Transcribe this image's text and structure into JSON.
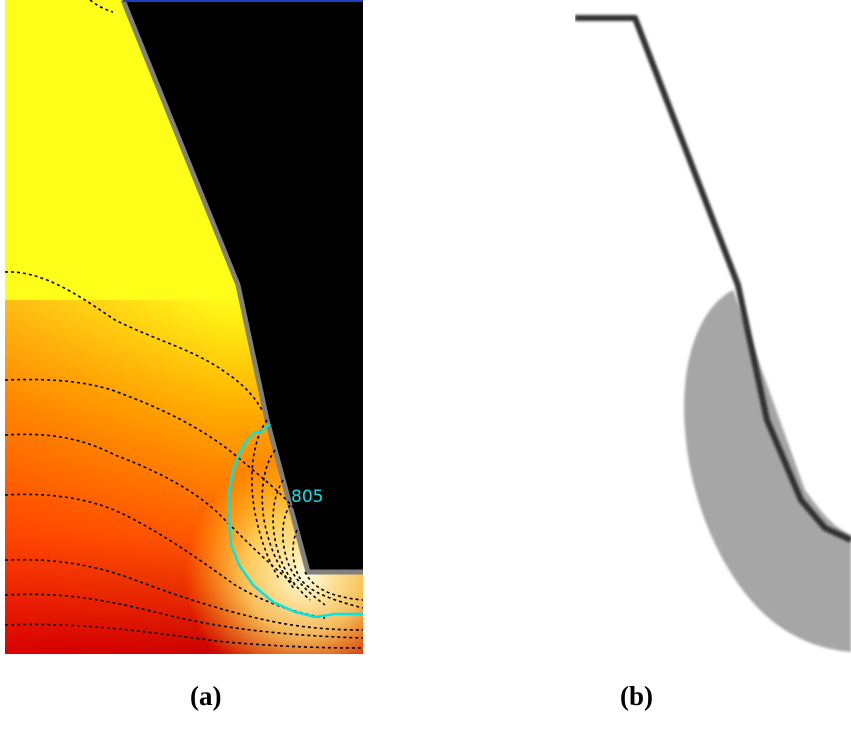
{
  "figure": {
    "panels": [
      {
        "id": "a",
        "caption": "(a)",
        "contour_label": "805",
        "colors": {
          "hot": "#cc0000",
          "warm": "#ff8a00",
          "cool": "#ffff1a",
          "pale": "#fffde0",
          "void": "#000000",
          "outline": "#808080",
          "isotherm_highlight": "#00e5e5",
          "isotherm_dashed": "#000000"
        }
      },
      {
        "id": "b",
        "caption": "(b)",
        "colors": {
          "zone": "#a6a6a6",
          "profile_line": "#333333"
        }
      }
    ]
  }
}
